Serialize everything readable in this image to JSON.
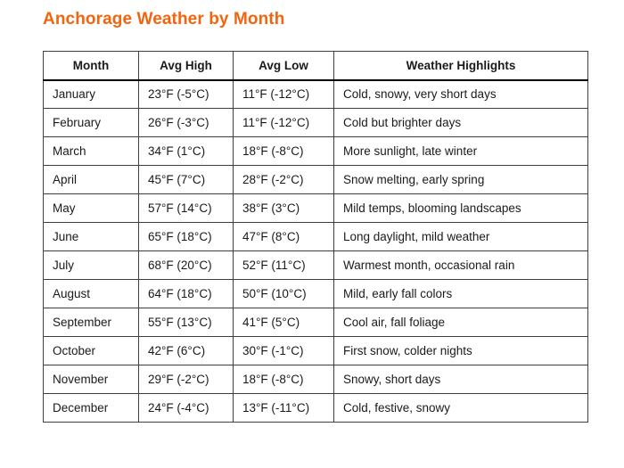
{
  "page": {
    "title": "Anchorage Weather by Month"
  },
  "colors": {
    "title_orange": "#f4640f",
    "grid_border": "#3f3f3f",
    "header_underline": "#000000",
    "body_text": "#1a1a1a",
    "background": "#ffffff"
  },
  "table": {
    "headers": {
      "month": "Month",
      "avg_high": "Avg High",
      "avg_low": "Avg Low",
      "highlights": "Weather Highlights"
    },
    "rows": [
      {
        "month": "January",
        "avg_high": "23°F (-5°C)",
        "avg_low": "11°F (-12°C)",
        "highlights": "Cold, snowy, very short days"
      },
      {
        "month": "February",
        "avg_high": "26°F (-3°C)",
        "avg_low": "11°F (-12°C)",
        "highlights": "Cold but brighter days"
      },
      {
        "month": "March",
        "avg_high": "34°F (1°C)",
        "avg_low": "18°F (-8°C)",
        "highlights": "More sunlight, late winter"
      },
      {
        "month": "April",
        "avg_high": "45°F (7°C)",
        "avg_low": "28°F (-2°C)",
        "highlights": "Snow melting, early spring"
      },
      {
        "month": "May",
        "avg_high": "57°F (14°C)",
        "avg_low": "38°F (3°C)",
        "highlights": "Mild temps, blooming landscapes"
      },
      {
        "month": "June",
        "avg_high": "65°F (18°C)",
        "avg_low": "47°F (8°C)",
        "highlights": "Long daylight, mild weather"
      },
      {
        "month": "July",
        "avg_high": "68°F (20°C)",
        "avg_low": "52°F (11°C)",
        "highlights": "Warmest month, occasional rain"
      },
      {
        "month": "August",
        "avg_high": "64°F (18°C)",
        "avg_low": "50°F (10°C)",
        "highlights": "Mild, early fall colors"
      },
      {
        "month": "September",
        "avg_high": "55°F (13°C)",
        "avg_low": "41°F (5°C)",
        "highlights": "Cool air, fall foliage"
      },
      {
        "month": "October",
        "avg_high": "42°F (6°C)",
        "avg_low": "30°F (-1°C)",
        "highlights": "First snow, colder nights"
      },
      {
        "month": "November",
        "avg_high": "29°F (-2°C)",
        "avg_low": "18°F (-8°C)",
        "highlights": "Snowy, short days"
      },
      {
        "month": "December",
        "avg_high": "24°F (-4°C)",
        "avg_low": "13°F (-11°C)",
        "highlights": "Cold, festive, snowy"
      }
    ]
  }
}
